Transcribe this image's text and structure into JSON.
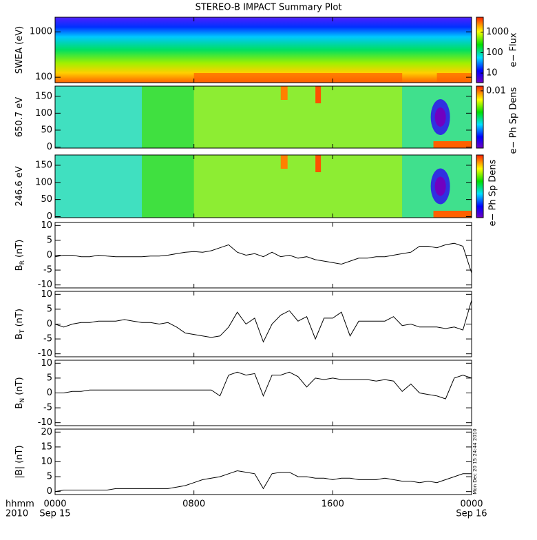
{
  "chart_data": {
    "title": "STEREO-B IMPACT Summary Plot",
    "xlim": [
      0,
      24
    ],
    "xticks": [
      {
        "value": 0,
        "label": "0000"
      },
      {
        "value": 8,
        "label": "0800"
      },
      {
        "value": 16,
        "label": "1600"
      },
      {
        "value": 24,
        "label": "0000"
      }
    ],
    "date_labels": [
      "Sep 15",
      "Sep 16"
    ],
    "row_labels": [
      "hhmm",
      "2010"
    ],
    "timestamp": "Mon Dec 20 15:24:44 2010",
    "x": [
      0,
      0.5,
      1,
      1.5,
      2,
      2.5,
      3,
      3.5,
      4,
      4.5,
      5,
      5.5,
      6,
      6.5,
      7,
      7.5,
      8,
      8.5,
      9,
      9.5,
      10,
      10.5,
      11,
      11.5,
      12,
      12.5,
      13,
      13.5,
      14,
      14.5,
      15,
      15.5,
      16,
      16.5,
      17,
      17.5,
      18,
      18.5,
      19,
      19.5,
      20,
      20.5,
      21,
      21.5,
      22,
      22.5,
      23,
      23.5,
      24
    ],
    "panels": [
      {
        "type": "heatmap",
        "ylabel": "SWEA (eV)",
        "log": true,
        "ylim": [
          76,
          2100
        ],
        "yticks": [
          100,
          1000
        ],
        "colorbar": {
          "label": "e− Flux",
          "log": true,
          "lim": [
            3.4,
            5400
          ],
          "ticks": [
            10,
            100,
            1000
          ]
        }
      },
      {
        "type": "heatmap",
        "ylabel": "650.7 eV",
        "log": false,
        "ylim": [
          -3,
          180
        ],
        "yticks": [
          0,
          50,
          100,
          150
        ],
        "colorbar": {
          "label": "e− Ph Sp Dens",
          "log": true,
          "lim": [
            7.5e-05,
            0.015
          ],
          "ticks": [
            0.01
          ]
        }
      },
      {
        "type": "heatmap",
        "ylabel": "246.6 eV",
        "log": false,
        "ylim": [
          -3,
          180
        ],
        "yticks": [
          0,
          50,
          100,
          150
        ],
        "colorbar": {
          "label": "e− Ph Sp Dens",
          "log": true,
          "lim": [
            7.5e-05,
            0.015
          ],
          "ticks": []
        }
      },
      {
        "type": "line",
        "ylabel": "B",
        "ylabel_sub": "R",
        "ylabel_unit": " (nT)",
        "ylim": [
          -11,
          11
        ],
        "yticks": [
          -10,
          -5,
          0,
          5,
          10
        ],
        "color": "#000000",
        "values": [
          -0.5,
          0,
          0,
          -0.5,
          -0.5,
          0,
          -0.3,
          -0.5,
          -0.5,
          -0.5,
          -0.5,
          -0.3,
          -0.3,
          0,
          0.5,
          1,
          1.2,
          1,
          1.5,
          2.5,
          3.5,
          1,
          0,
          0.5,
          -0.5,
          1,
          -0.5,
          0,
          -1,
          -0.5,
          -1.5,
          -2,
          -2.5,
          -3,
          -2,
          -1,
          -1,
          -0.5,
          -0.5,
          0,
          0.5,
          1,
          3,
          3,
          2.5,
          3.5,
          4,
          3,
          -6
        ]
      },
      {
        "type": "line",
        "ylabel": "B",
        "ylabel_sub": "T",
        "ylabel_unit": " (nT)",
        "ylim": [
          -11,
          11
        ],
        "yticks": [
          -10,
          -5,
          0,
          5,
          10
        ],
        "color": "#000000",
        "values": [
          0,
          -1,
          0,
          0.5,
          0.5,
          1,
          1,
          1,
          1.5,
          1,
          0.5,
          0.5,
          0,
          0.5,
          -1,
          -3,
          -3.5,
          -4,
          -4.5,
          -4,
          -1,
          4,
          0,
          2,
          -6,
          0,
          3,
          4.5,
          1,
          2.5,
          -5,
          2,
          2,
          4,
          -4,
          1,
          1,
          1,
          1,
          2.5,
          -0.5,
          0,
          -1,
          -1,
          -1,
          -1.5,
          -1,
          -2,
          8
        ]
      },
      {
        "type": "line",
        "ylabel": "B",
        "ylabel_sub": "N",
        "ylabel_unit": " (nT)",
        "ylim": [
          -11,
          11
        ],
        "yticks": [
          -10,
          -5,
          0,
          5,
          10
        ],
        "color": "#000000",
        "values": [
          0,
          0,
          0.5,
          0.5,
          1,
          1,
          1,
          1,
          1,
          1,
          1,
          1,
          1,
          1,
          1,
          1,
          1,
          1,
          1,
          -1,
          6,
          7,
          6,
          6.5,
          -1,
          6,
          6,
          7,
          5.5,
          2,
          5,
          4.5,
          5,
          4.5,
          4.5,
          4.5,
          4.5,
          4,
          4.5,
          4,
          0.5,
          3,
          0,
          -0.5,
          -1,
          -2,
          5,
          6,
          5
        ]
      },
      {
        "type": "line",
        "ylabel": "|B| (nT)",
        "ylim": [
          -1,
          21
        ],
        "yticks": [
          0,
          5,
          10,
          15,
          20
        ],
        "color": "#000000",
        "values": [
          0,
          0.5,
          0.5,
          0.5,
          0.5,
          0.5,
          0.5,
          1,
          1,
          1,
          1,
          1,
          1,
          1,
          1.5,
          2,
          3,
          4,
          4.5,
          5,
          6,
          7,
          6.5,
          6,
          1,
          6,
          6.5,
          6.5,
          5,
          5,
          4.5,
          4.5,
          4,
          4.5,
          4.5,
          4,
          4,
          4,
          4.5,
          4,
          3.5,
          3.5,
          3,
          3.5,
          3,
          4,
          5,
          6,
          6
        ]
      }
    ]
  }
}
